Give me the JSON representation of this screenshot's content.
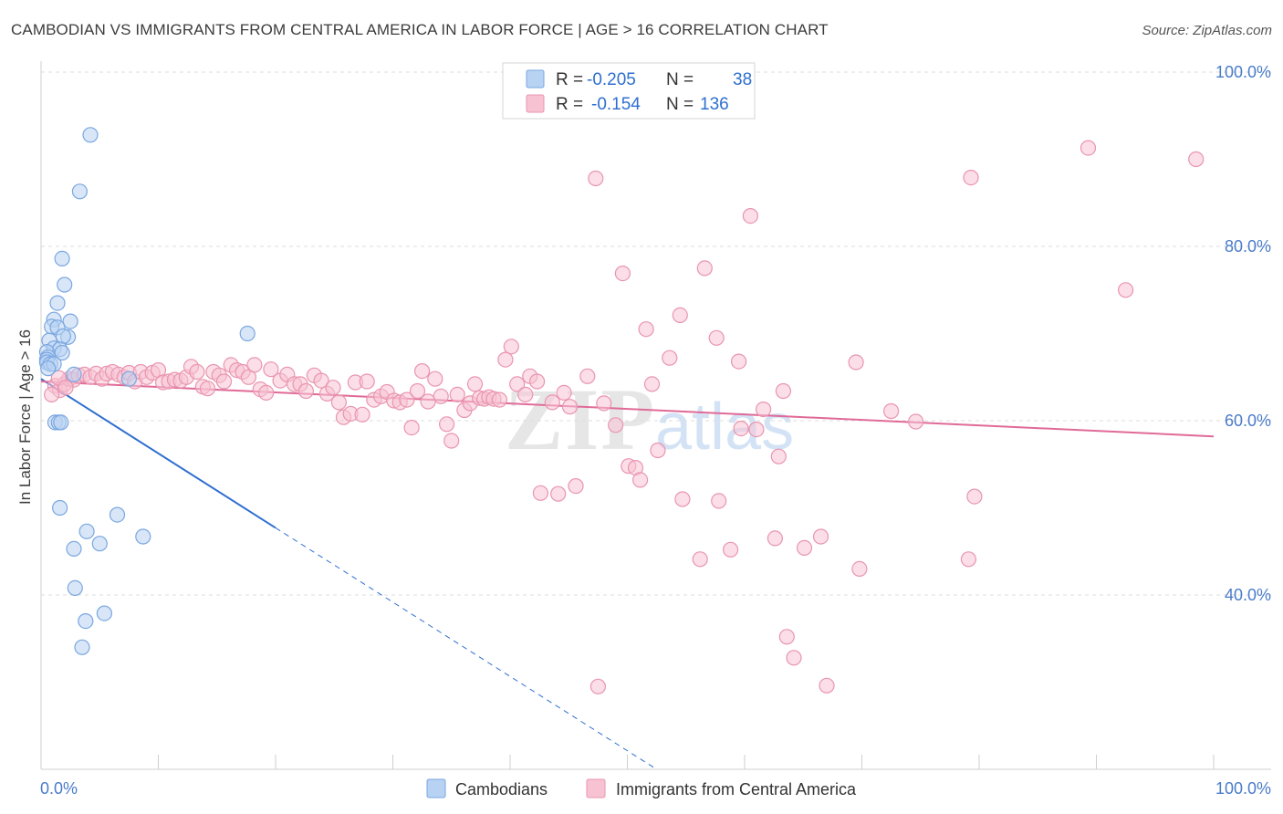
{
  "title": "CAMBODIAN VS IMMIGRANTS FROM CENTRAL AMERICA IN LABOR FORCE | AGE > 16 CORRELATION CHART",
  "source": "Source: ZipAtlas.com",
  "watermark": {
    "zip": "ZIP",
    "atlas": "atlas"
  },
  "colors": {
    "blue_fill": "#b8d2f3",
    "blue_stroke": "#7aa7e0",
    "blue_line": "#2f6fd0",
    "pink_fill": "#f7c3d3",
    "pink_stroke": "#e995b0",
    "pink_line": "#e06a97",
    "tick": "#4a7cc9",
    "grid": "#dcdcdc"
  },
  "legend": {
    "rows": [
      {
        "r_label": "R = ",
        "r_value": "-0.205",
        "n_label": "N = ",
        "n_value": "38"
      },
      {
        "r_label": "R = ",
        "r_value": "-0.154",
        "n_label": "N = ",
        "n_value": "136"
      }
    ]
  },
  "bottom_legend": [
    "Cambodians",
    "Immigrants from Central America"
  ],
  "chart_data": {
    "type": "scatter",
    "xlabel": "",
    "ylabel": "In Labor Force | Age > 16",
    "xlim": [
      0,
      100
    ],
    "ylim": [
      20,
      100
    ],
    "x_tick_labels": [
      "0.0%",
      "100.0%"
    ],
    "y_ticks": [
      40,
      60,
      80,
      100
    ],
    "y_tick_labels": [
      "40.0%",
      "60.0%",
      "80.0%",
      "100.0%"
    ],
    "grid": true,
    "series": [
      {
        "name": "Cambodians",
        "color": "#b8d2f3",
        "trend": {
          "x0": 0,
          "y0": 64.8,
          "x1": 20,
          "y1": 47.7,
          "dash_to_x": 52.5,
          "dash_to_y": 20.0
        },
        "points": [
          [
            4.2,
            92.8
          ],
          [
            3.3,
            86.3
          ],
          [
            1.8,
            78.6
          ],
          [
            2.0,
            75.6
          ],
          [
            1.4,
            73.5
          ],
          [
            1.1,
            71.6
          ],
          [
            2.5,
            71.4
          ],
          [
            0.9,
            70.8
          ],
          [
            1.4,
            70.7
          ],
          [
            2.3,
            69.6
          ],
          [
            1.9,
            69.7
          ],
          [
            0.7,
            69.2
          ],
          [
            1.1,
            68.3
          ],
          [
            1.6,
            68.2
          ],
          [
            1.8,
            67.8
          ],
          [
            0.5,
            67.9
          ],
          [
            0.6,
            67.3
          ],
          [
            0.5,
            67.0
          ],
          [
            0.5,
            66.7
          ],
          [
            0.8,
            66.5
          ],
          [
            1.1,
            66.5
          ],
          [
            0.6,
            66.0
          ],
          [
            2.8,
            65.3
          ],
          [
            7.5,
            64.8
          ],
          [
            17.6,
            70.0
          ],
          [
            1.2,
            59.8
          ],
          [
            1.5,
            59.8
          ],
          [
            1.7,
            59.8
          ],
          [
            1.6,
            50.0
          ],
          [
            6.5,
            49.2
          ],
          [
            3.9,
            47.3
          ],
          [
            8.7,
            46.7
          ],
          [
            5.0,
            45.9
          ],
          [
            2.8,
            45.3
          ],
          [
            2.9,
            40.8
          ],
          [
            5.4,
            37.9
          ],
          [
            3.8,
            37.0
          ],
          [
            3.5,
            34.0
          ]
        ]
      },
      {
        "name": "Immigrants from Central America",
        "color": "#f7c3d3",
        "trend": {
          "x0": 0,
          "y0": 64.5,
          "x1": 100,
          "y1": 58.2
        },
        "points": [
          [
            1.2,
            64.0
          ],
          [
            1.6,
            63.5
          ],
          [
            2.0,
            64.2
          ],
          [
            2.4,
            64.8
          ],
          [
            2.8,
            64.7
          ],
          [
            3.2,
            65.2
          ],
          [
            3.7,
            65.3
          ],
          [
            4.2,
            65.0
          ],
          [
            4.7,
            65.4
          ],
          [
            5.2,
            64.8
          ],
          [
            5.6,
            65.4
          ],
          [
            6.1,
            65.6
          ],
          [
            6.6,
            65.3
          ],
          [
            7.1,
            65.0
          ],
          [
            7.5,
            65.5
          ],
          [
            8.0,
            64.5
          ],
          [
            8.5,
            65.6
          ],
          [
            9.0,
            65.0
          ],
          [
            9.5,
            65.5
          ],
          [
            10.0,
            65.8
          ],
          [
            10.4,
            64.4
          ],
          [
            10.9,
            64.5
          ],
          [
            11.4,
            64.7
          ],
          [
            11.9,
            64.6
          ],
          [
            12.4,
            65.0
          ],
          [
            12.8,
            66.2
          ],
          [
            13.3,
            65.6
          ],
          [
            13.8,
            63.9
          ],
          [
            14.2,
            63.7
          ],
          [
            14.7,
            65.6
          ],
          [
            15.2,
            65.2
          ],
          [
            15.6,
            64.5
          ],
          [
            16.2,
            66.4
          ],
          [
            16.7,
            65.8
          ],
          [
            17.2,
            65.6
          ],
          [
            17.7,
            65.0
          ],
          [
            18.2,
            66.4
          ],
          [
            18.7,
            63.6
          ],
          [
            19.2,
            63.2
          ],
          [
            19.6,
            65.9
          ],
          [
            20.4,
            64.6
          ],
          [
            21.0,
            65.3
          ],
          [
            21.6,
            64.2
          ],
          [
            22.1,
            64.2
          ],
          [
            22.6,
            63.4
          ],
          [
            23.3,
            65.2
          ],
          [
            23.9,
            64.6
          ],
          [
            24.4,
            63.1
          ],
          [
            24.9,
            63.8
          ],
          [
            25.4,
            62.1
          ],
          [
            25.8,
            60.4
          ],
          [
            26.4,
            60.8
          ],
          [
            26.8,
            64.4
          ],
          [
            27.4,
            60.7
          ],
          [
            27.8,
            64.5
          ],
          [
            28.4,
            62.4
          ],
          [
            29.0,
            62.8
          ],
          [
            29.5,
            63.3
          ],
          [
            30.1,
            62.3
          ],
          [
            30.6,
            62.1
          ],
          [
            31.2,
            62.4
          ],
          [
            31.6,
            59.2
          ],
          [
            32.1,
            63.4
          ],
          [
            32.5,
            65.7
          ],
          [
            33.0,
            62.2
          ],
          [
            33.6,
            64.8
          ],
          [
            34.1,
            62.8
          ],
          [
            34.6,
            59.6
          ],
          [
            35.0,
            57.7
          ],
          [
            35.5,
            63.0
          ],
          [
            36.1,
            61.2
          ],
          [
            36.6,
            62.0
          ],
          [
            37.0,
            64.2
          ],
          [
            37.4,
            62.6
          ],
          [
            37.8,
            62.5
          ],
          [
            38.2,
            62.7
          ],
          [
            38.6,
            62.5
          ],
          [
            39.1,
            62.4
          ],
          [
            39.6,
            67.0
          ],
          [
            40.1,
            68.5
          ],
          [
            40.6,
            64.2
          ],
          [
            41.3,
            63.0
          ],
          [
            41.7,
            65.1
          ],
          [
            42.3,
            64.5
          ],
          [
            42.6,
            51.7
          ],
          [
            43.6,
            62.1
          ],
          [
            44.1,
            51.6
          ],
          [
            44.6,
            63.2
          ],
          [
            45.1,
            61.6
          ],
          [
            45.6,
            52.5
          ],
          [
            46.6,
            65.1
          ],
          [
            47.3,
            87.8
          ],
          [
            48.0,
            62.0
          ],
          [
            49.0,
            59.5
          ],
          [
            49.6,
            76.9
          ],
          [
            50.1,
            54.8
          ],
          [
            50.7,
            54.6
          ],
          [
            51.1,
            53.2
          ],
          [
            51.6,
            70.5
          ],
          [
            52.1,
            64.2
          ],
          [
            52.6,
            56.6
          ],
          [
            53.6,
            67.2
          ],
          [
            54.5,
            72.1
          ],
          [
            54.7,
            51.0
          ],
          [
            56.2,
            44.1
          ],
          [
            56.6,
            77.5
          ],
          [
            57.6,
            69.5
          ],
          [
            57.8,
            50.8
          ],
          [
            58.8,
            45.2
          ],
          [
            59.5,
            66.8
          ],
          [
            59.7,
            59.1
          ],
          [
            60.5,
            83.5
          ],
          [
            61.0,
            59.0
          ],
          [
            61.6,
            61.3
          ],
          [
            62.6,
            46.5
          ],
          [
            62.9,
            55.9
          ],
          [
            63.3,
            63.4
          ],
          [
            63.6,
            35.2
          ],
          [
            64.2,
            32.8
          ],
          [
            65.1,
            45.4
          ],
          [
            66.5,
            46.7
          ],
          [
            67.0,
            29.6
          ],
          [
            69.8,
            43.0
          ],
          [
            69.5,
            66.7
          ],
          [
            72.5,
            61.1
          ],
          [
            74.6,
            59.9
          ],
          [
            79.1,
            44.1
          ],
          [
            79.6,
            51.3
          ],
          [
            79.3,
            87.9
          ],
          [
            47.5,
            29.5
          ],
          [
            89.3,
            91.3
          ],
          [
            92.5,
            75.0
          ],
          [
            98.5,
            90.0
          ],
          [
            0.9,
            63.0
          ],
          [
            1.5,
            64.9
          ],
          [
            2.1,
            63.8
          ]
        ]
      }
    ]
  }
}
